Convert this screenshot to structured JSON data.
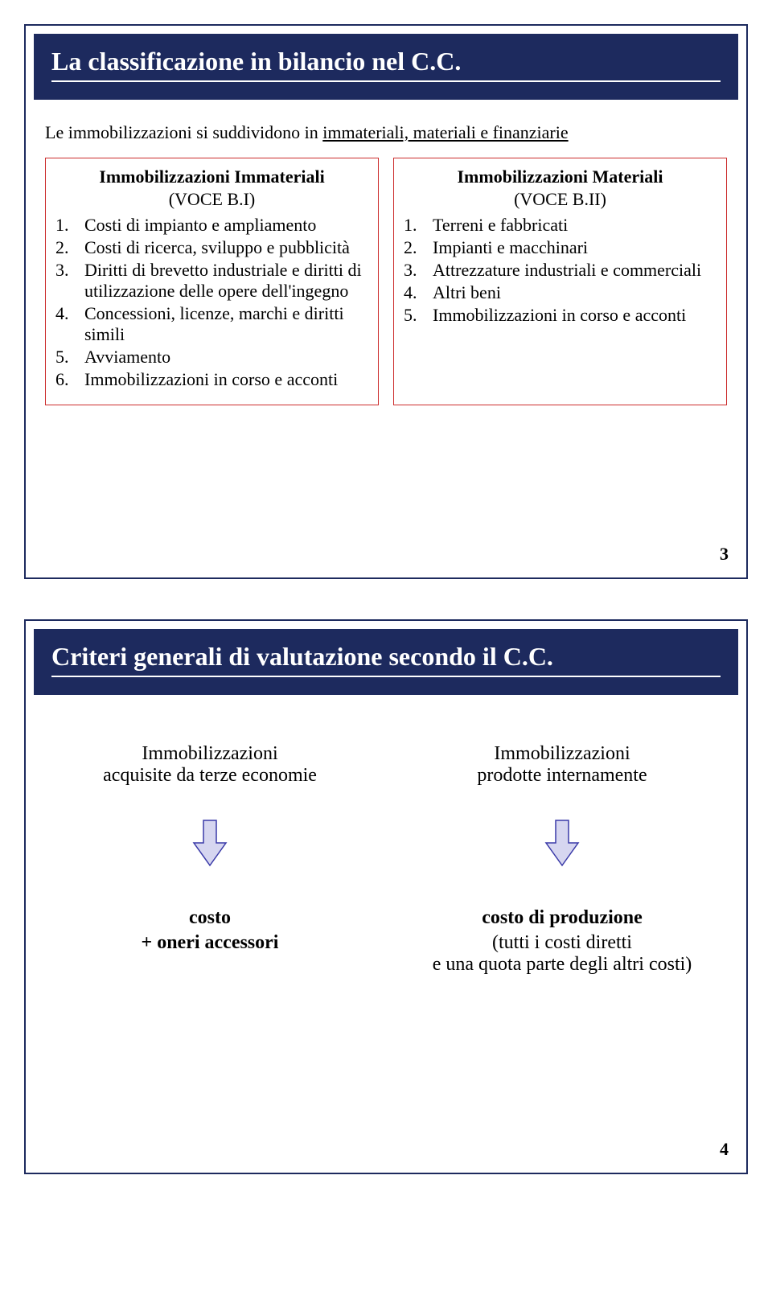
{
  "colors": {
    "navy": "#1d2a5e",
    "box_border": "#cc2d2d",
    "arrow_fill": "#d6d6f0",
    "arrow_stroke": "#3a3aa8",
    "white": "#ffffff",
    "black": "#000000"
  },
  "slide1": {
    "title": "La classificazione in bilancio nel C.C.",
    "intro_prefix": "Le immobilizzazioni si suddividono in ",
    "intro_underlined": "immateriali, materiali e finanziarie",
    "page_num": "3",
    "left": {
      "head": "Immobilizzazioni Immateriali",
      "sub": "(VOCE B.I)",
      "items": [
        "Costi di impianto e ampliamento",
        "Costi di ricerca, sviluppo e pubblicità",
        "Diritti di brevetto industriale e diritti di utilizzazione delle opere dell'ingegno",
        "Concessioni, licenze, marchi e diritti simili",
        "Avviamento",
        "Immobilizzazioni in corso e acconti"
      ]
    },
    "right": {
      "head": "Immobilizzazioni Materiali",
      "sub": "(VOCE B.II)",
      "items": [
        "Terreni e fabbricati",
        "Impianti e macchinari",
        "Attrezzature industriali e commerciali",
        "Altri beni",
        "Immobilizzazioni in corso e acconti"
      ]
    }
  },
  "slide2": {
    "title": "Criteri generali di valutazione secondo il C.C.",
    "page_num": "4",
    "left": {
      "head": "Immobilizzazioni",
      "sub": "acquisite da terze economie",
      "result1": "costo",
      "result2": "+ oneri accessori"
    },
    "right": {
      "head": "Immobilizzazioni",
      "sub": "prodotte internamente",
      "result_head": "costo di produzione",
      "result_line1": "(tutti i costi diretti",
      "result_line2": "e una quota parte degli altri costi)"
    },
    "arrow": {
      "width": 44,
      "height": 60
    }
  }
}
